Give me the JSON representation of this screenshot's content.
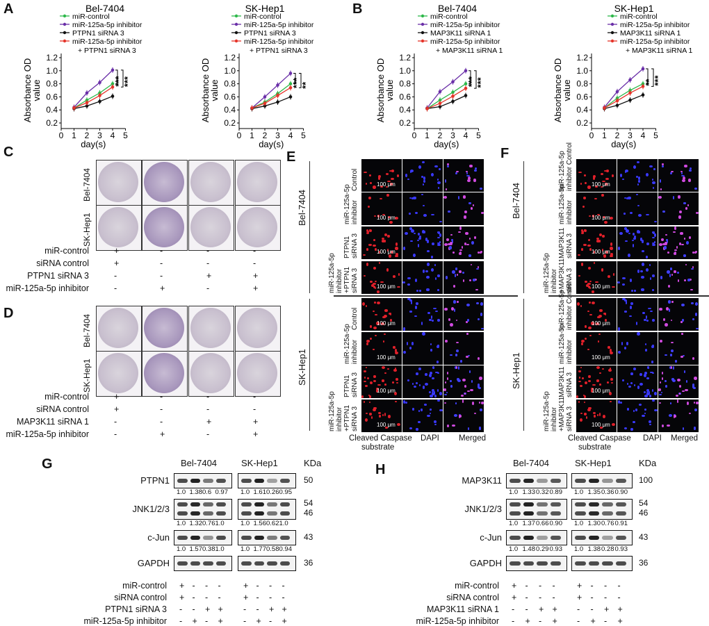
{
  "panels": {
    "A": "A",
    "B": "B",
    "C": "C",
    "D": "D",
    "E": "E",
    "F": "F",
    "G": "G",
    "H": "H"
  },
  "charts": [
    {
      "title": "Bel-7404",
      "group": "A",
      "legend": [
        "miR-control",
        "miR-125a-5p inhibitor",
        "PTPN1 siRNA 3",
        "miR-125a-5p inhibitor",
        "+ PTPN1 siRNA 3"
      ],
      "sig": [
        "***",
        "***"
      ]
    },
    {
      "title": "SK-Hep1",
      "group": "A",
      "legend": [
        "miR-control",
        "miR-125a-5p inhibitor",
        "PTPN1 siRNA 3",
        "miR-125a-5p inhibitor",
        "+ PTPN1 siRNA 3"
      ],
      "sig": [
        "**",
        "***"
      ]
    },
    {
      "title": "Bel-7404",
      "group": "B",
      "legend": [
        "miR-control",
        "miR-125a-5p inhibitor",
        "MAP3K11 siRNA 1",
        "miR-125a-5p inhibitor",
        "+ MAP3K11 siRNA 1"
      ],
      "sig": [
        "***",
        "***"
      ]
    },
    {
      "title": "SK-Hep1",
      "group": "B",
      "legend": [
        "miR-control",
        "miR-125a-5p inhibitor",
        "MAP3K11 siRNA 1",
        "miR-125a-5p inhibitor",
        "+ MAP3K11 siRNA 1"
      ],
      "sig": [
        "***",
        "**"
      ]
    }
  ],
  "chart_data": [
    {
      "type": "line",
      "title": "Bel-7404",
      "xlabel": "day(s)",
      "ylabel": "Absorbance OD value",
      "xlim": [
        0,
        5
      ],
      "ylim": [
        0.2,
        1.2
      ],
      "x": [
        1,
        2,
        3,
        4
      ],
      "series": [
        {
          "name": "miR-control",
          "values": [
            0.43,
            0.55,
            0.66,
            0.8
          ]
        },
        {
          "name": "miR-125a-5p inhibitor",
          "values": [
            0.44,
            0.66,
            0.82,
            1.01
          ]
        },
        {
          "name": "PTPN1 siRNA 3",
          "values": [
            0.42,
            0.46,
            0.53,
            0.61
          ]
        },
        {
          "name": "miR-125a-5p inhibitor + PTPN1 siRNA 3",
          "values": [
            0.43,
            0.51,
            0.62,
            0.75
          ]
        }
      ]
    },
    {
      "type": "line",
      "title": "SK-Hep1",
      "xlabel": "day(s)",
      "ylabel": "Absorbance OD value",
      "xlim": [
        0,
        5
      ],
      "ylim": [
        0.2,
        1.2
      ],
      "x": [
        1,
        2,
        3,
        4
      ],
      "series": [
        {
          "name": "miR-control",
          "values": [
            0.43,
            0.52,
            0.65,
            0.8
          ]
        },
        {
          "name": "miR-125a-5p inhibitor",
          "values": [
            0.43,
            0.6,
            0.78,
            0.96
          ]
        },
        {
          "name": "PTPN1 siRNA 3",
          "values": [
            0.42,
            0.46,
            0.52,
            0.6
          ]
        },
        {
          "name": "miR-125a-5p inhibitor + PTPN1 siRNA 3",
          "values": [
            0.43,
            0.5,
            0.62,
            0.74
          ]
        }
      ]
    },
    {
      "type": "line",
      "title": "Bel-7404",
      "xlabel": "day(s)",
      "ylabel": "Absorbance OD value",
      "xlim": [
        0,
        5
      ],
      "ylim": [
        0.2,
        1.2
      ],
      "x": [
        1,
        2,
        3,
        4
      ],
      "series": [
        {
          "name": "miR-control",
          "values": [
            0.42,
            0.55,
            0.67,
            0.8
          ]
        },
        {
          "name": "miR-125a-5p inhibitor",
          "values": [
            0.43,
            0.68,
            0.83,
            1.0
          ]
        },
        {
          "name": "MAP3K11 siRNA 1",
          "values": [
            0.42,
            0.45,
            0.53,
            0.62
          ]
        },
        {
          "name": "miR-125a-5p inhibitor + MAP3K11 siRNA 1",
          "values": [
            0.42,
            0.5,
            0.61,
            0.73
          ]
        }
      ]
    },
    {
      "type": "line",
      "title": "SK-Hep1",
      "xlabel": "day(s)",
      "ylabel": "Absorbance OD value",
      "xlim": [
        0,
        5
      ],
      "ylim": [
        0.2,
        1.2
      ],
      "x": [
        1,
        2,
        3,
        4
      ],
      "series": [
        {
          "name": "miR-control",
          "values": [
            0.43,
            0.58,
            0.7,
            0.8
          ]
        },
        {
          "name": "miR-125a-5p inhibitor",
          "values": [
            0.44,
            0.68,
            0.86,
            1.03
          ]
        },
        {
          "name": "MAP3K11 siRNA 1",
          "values": [
            0.42,
            0.47,
            0.55,
            0.63
          ]
        },
        {
          "name": "miR-125a-5p inhibitor + MAP3K11 siRNA 1",
          "values": [
            0.43,
            0.54,
            0.66,
            0.76
          ]
        }
      ]
    }
  ],
  "series_colors": [
    "#2db84a",
    "#6a2fa8",
    "#111111",
    "#e5342a"
  ],
  "colony_C": {
    "rows": [
      "Bel-7404",
      "SK-Hep1"
    ],
    "labels": [
      "miR-control",
      "siRNA control",
      "PTPN1 siRNA 3",
      "miR-125a-5p inhibitor"
    ],
    "signs": [
      [
        "+",
        "-",
        "-",
        "-"
      ],
      [
        "+",
        "-",
        "-",
        "-"
      ],
      [
        "-",
        "-",
        "+",
        "+"
      ],
      [
        "-",
        "+",
        "-",
        "+"
      ]
    ]
  },
  "colony_D": {
    "rows": [
      "Bel-7404",
      "SK-Hep1"
    ],
    "labels": [
      "miR-control",
      "siRNA control",
      "MAP3K11 siRNA 1",
      "miR-125a-5p inhibitor"
    ],
    "signs": [
      [
        "+",
        "-",
        "-",
        "-"
      ],
      [
        "+",
        "-",
        "-",
        "-"
      ],
      [
        "-",
        "-",
        "+",
        "+"
      ],
      [
        "-",
        "+",
        "-",
        "+"
      ]
    ]
  },
  "panel_E": {
    "cells": [
      "Bel-7404",
      "SK-Hep1"
    ],
    "rows": [
      [
        "Control"
      ],
      [
        "miR-125a-5p",
        "inhibitor"
      ],
      [
        "PTPN1",
        "siRNA 3"
      ],
      [
        "miR-125a-5p",
        "inhibitor",
        "+PTPN1",
        "siRNA 3"
      ]
    ],
    "scale": "100 μm",
    "columns": [
      "Cleaved Caspase",
      "substrate",
      "DAPI",
      "Merged"
    ]
  },
  "panel_F": {
    "cells": [
      "Bel-7404",
      "SK-Hep1"
    ],
    "rows": [
      [
        "miR-125a-5p",
        "inhibitor Control"
      ],
      [
        "MAP3K11",
        "siRNA 3"
      ],
      [
        "miR-125a-5p",
        "inhibitor",
        "+MAP3K11",
        "siRNA 3"
      ]
    ],
    "rows_sk": [
      [
        "miR-125a-5p",
        "inhibitor Control"
      ],
      [
        "MAP3K11",
        "siRNA 3"
      ],
      [
        "miR-125a-5p",
        "inhibitor",
        "+MAP3K11",
        "siRNA 3"
      ]
    ],
    "mid": "miR-125a-5p",
    "columns": [
      "Cleaved Caspase",
      "DAPI",
      "Merged"
    ],
    "col2": "substrate"
  },
  "panel_G": {
    "cells": [
      "Bel-7404",
      "SK-Hep1"
    ],
    "kda": "KDa",
    "proteins": [
      {
        "name": "PTPN1",
        "kda": "50",
        "bel": [
          "1.0",
          "1.38",
          "0.6",
          "0.97"
        ],
        "sk": [
          "1.0",
          "1.61",
          "0.26",
          "0.95"
        ]
      },
      {
        "name": "JNK1/2/3",
        "kda": "54",
        "kda2": "46",
        "bel": [
          "1.0",
          "1.32",
          "0.76",
          "1.0"
        ],
        "sk": [
          "1.0",
          "1.56",
          "0.62",
          "1.0"
        ]
      },
      {
        "name": "c-Jun",
        "kda": "43",
        "bel": [
          "1.0",
          "1.57",
          "0.38",
          "1.0"
        ],
        "sk": [
          "1.0",
          "1.77",
          "0.58",
          "0.94"
        ]
      },
      {
        "name": "GAPDH",
        "kda": "36"
      }
    ],
    "labels": [
      "miR-control",
      "siRNA control",
      "PTPN1 siRNA 3",
      "miR-125a-5p inhibitor"
    ],
    "signs": [
      [
        "+",
        "-",
        "-",
        "-"
      ],
      [
        "+",
        "-",
        "-",
        "-"
      ],
      [
        "-",
        "-",
        "+",
        "+"
      ],
      [
        "-",
        "+",
        "-",
        "+"
      ]
    ]
  },
  "panel_H": {
    "cells": [
      "Bel-7404",
      "SK-Hep1"
    ],
    "kda": "KDa",
    "proteins": [
      {
        "name": "MAP3K11",
        "kda": "100",
        "bel": [
          "1.0",
          "1.33",
          "0.32",
          "0.89"
        ],
        "sk": [
          "1.0",
          "1.35",
          "0.36",
          "0.90"
        ]
      },
      {
        "name": "JNK1/2/3",
        "kda": "54",
        "kda2": "46",
        "bel": [
          "1.0",
          "1.37",
          "0.66",
          "0.90"
        ],
        "sk": [
          "1.0",
          "1.30",
          "0.76",
          "0.91"
        ]
      },
      {
        "name": "c-Jun",
        "kda": "43",
        "bel": [
          "1.0",
          "1.48",
          "0.29",
          "0.93"
        ],
        "sk": [
          "1.0",
          "1.38",
          "0.28",
          "0.93"
        ]
      },
      {
        "name": "GAPDH",
        "kda": "36"
      }
    ],
    "labels": [
      "miR-control",
      "siRNA control",
      "MAP3K11 siRNA 1",
      "miR-125a-5p inhibitor"
    ],
    "signs": [
      [
        "+",
        "-",
        "-",
        "-"
      ],
      [
        "+",
        "-",
        "-",
        "-"
      ],
      [
        "-",
        "-",
        "+",
        "+"
      ],
      [
        "-",
        "+",
        "-",
        "+"
      ]
    ]
  }
}
